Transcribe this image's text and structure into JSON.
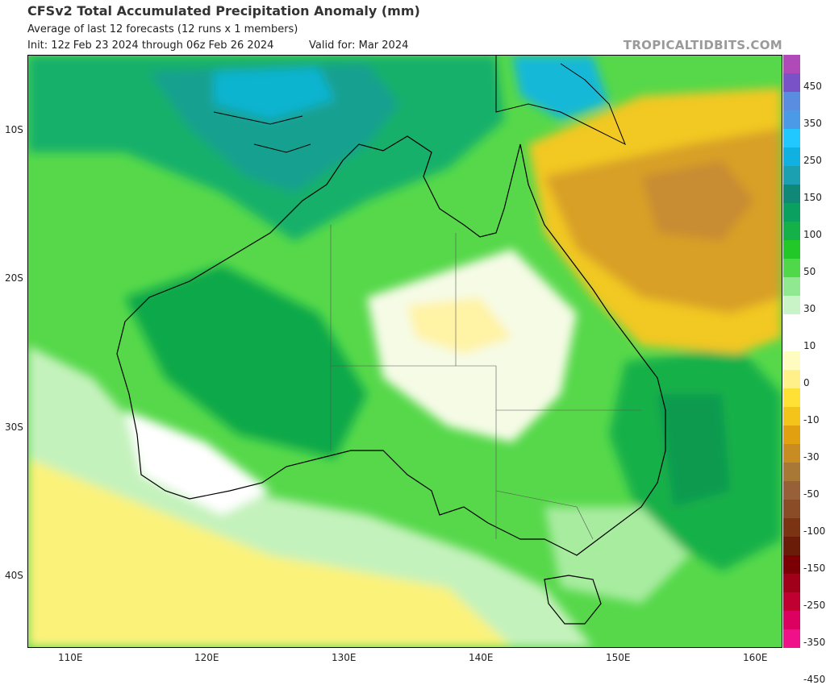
{
  "header": {
    "title": "CFSv2 Total Accumulated Precipitation Anomaly (mm)",
    "subtitle": "Average of last 12 forecasts (12 runs x 1 members)",
    "init": "Init: 12z Feb 23 2024 through 06z Feb 26 2024",
    "valid": "Valid for: Mar 2024",
    "brand": "TROPICALTIDBITS.COM"
  },
  "axes": {
    "lat_labels": [
      "10S",
      "20S",
      "30S",
      "40S"
    ],
    "lon_labels": [
      "110E",
      "120E",
      "130E",
      "140E",
      "150E",
      "160E"
    ]
  },
  "colorbar": {
    "labels": [
      "450",
      "350",
      "250",
      "150",
      "100",
      "50",
      "30",
      "10",
      "0",
      "-10",
      "-30",
      "-50",
      "-100",
      "-150",
      "-250",
      "-350",
      "-450"
    ],
    "colors": [
      "#b04ab8",
      "#7a52c8",
      "#5a8ce0",
      "#4a9ae8",
      "#20c8ff",
      "#10b0e0",
      "#1aa0b0",
      "#108878",
      "#0aa060",
      "#14b048",
      "#22c828",
      "#4ed84a",
      "#90e890",
      "#c8f4c8",
      "#ffffff",
      "#ffffff",
      "#fffcc0",
      "#fff08a",
      "#ffe034",
      "#f4c41a",
      "#e0a010",
      "#c88c22",
      "#a87836",
      "#986038",
      "#8a4c26",
      "#7a3414",
      "#6a1c08",
      "#7a0006",
      "#a0001a",
      "#c00030",
      "#dc0060",
      "#f0108a"
    ]
  }
}
